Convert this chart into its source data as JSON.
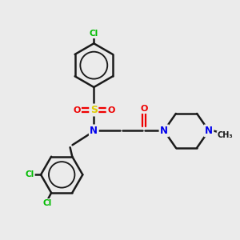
{
  "background_color": "#ebebeb",
  "bond_color": "#1a1a1a",
  "bond_width": 1.8,
  "atom_colors": {
    "C": "#1a1a1a",
    "N": "#0000ee",
    "O": "#ee0000",
    "S": "#ddcc00",
    "Cl": "#00bb00"
  },
  "figsize": [
    3.0,
    3.0
  ],
  "dpi": 100,
  "xlim": [
    0,
    10
  ],
  "ylim": [
    0,
    10
  ]
}
